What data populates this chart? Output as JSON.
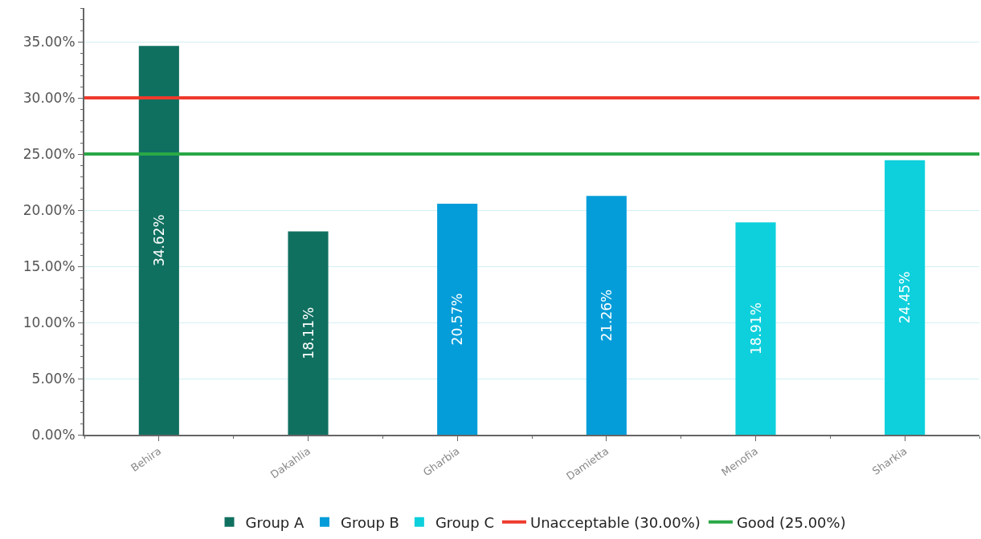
{
  "chart_data": {
    "type": "bar",
    "categories": [
      "Behira",
      "Dakahlia",
      "Gharbia",
      "Damietta",
      "Menofia",
      "Sharkia"
    ],
    "series": [
      {
        "name": "Group A",
        "color": "#107060",
        "values": [
          34.62,
          18.11,
          null,
          null,
          null,
          null
        ],
        "value_labels": [
          "34.62%",
          "18.11%",
          null,
          null,
          null,
          null
        ]
      },
      {
        "name": "Group B",
        "color": "#049dd9",
        "values": [
          null,
          null,
          20.57,
          21.26,
          null,
          null
        ],
        "value_labels": [
          null,
          null,
          "20.57%",
          "21.26%",
          null,
          null
        ]
      },
      {
        "name": "Group C",
        "color": "#0dd0dc",
        "values": [
          null,
          null,
          null,
          null,
          18.91,
          24.45
        ],
        "value_labels": [
          null,
          null,
          null,
          null,
          "18.91%",
          "24.45%"
        ]
      }
    ],
    "ref_lines": [
      {
        "axis": "y",
        "value": 30,
        "label": "Unacceptable (30.00%)",
        "color": "#ee3a2c"
      },
      {
        "axis": "y",
        "value": 25,
        "label": "Good (25.00%)",
        "color": "#2aa846"
      }
    ],
    "ylim": [
      0,
      38
    ],
    "yticks": [
      {
        "value": 0,
        "label": "0.00%"
      },
      {
        "value": 5,
        "label": "5.00%"
      },
      {
        "value": 10,
        "label": "10.00%"
      },
      {
        "value": 15,
        "label": "15.00%"
      },
      {
        "value": 20,
        "label": "20.00%"
      },
      {
        "value": 25,
        "label": "25.00%"
      },
      {
        "value": 30,
        "label": "30.00%"
      },
      {
        "value": 35,
        "label": "35.00%"
      }
    ],
    "grid": "y",
    "legend": "bottom"
  }
}
